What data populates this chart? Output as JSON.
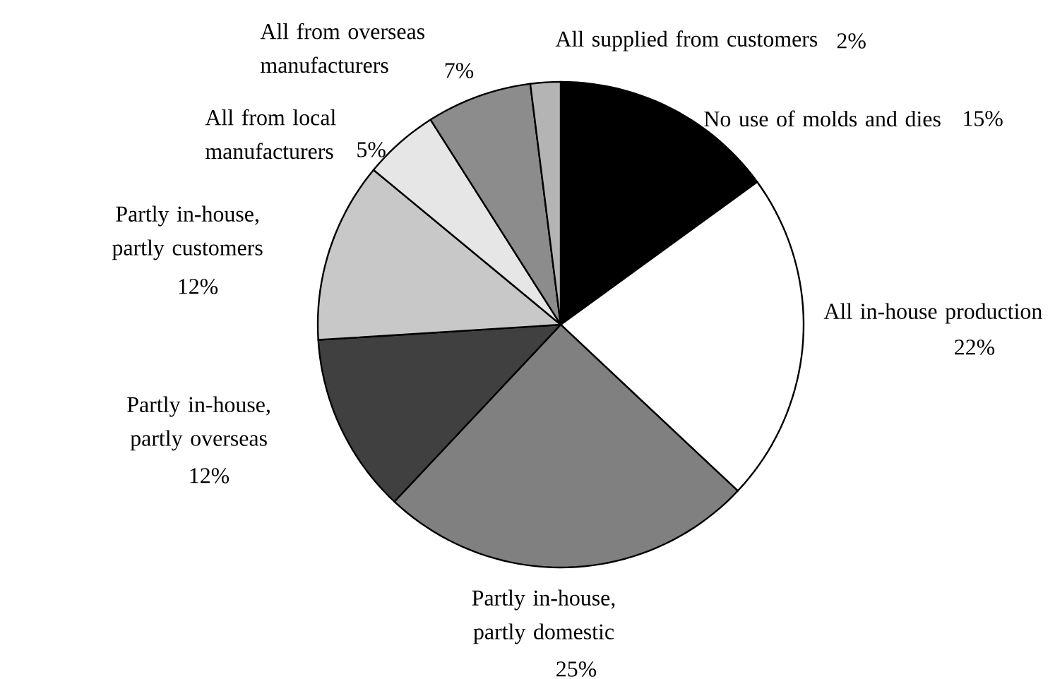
{
  "chart_data": {
    "type": "pie",
    "categories": [
      "No use of molds and dies",
      "All in-house production",
      "Partly in-house, partly domestic",
      "Partly in-house, partly overseas",
      "Partly in-house, partly customers",
      "All from local manufacturers",
      "All from overseas manufacturers",
      "All supplied from customers"
    ],
    "values": [
      15,
      22,
      25,
      12,
      12,
      5,
      7,
      2
    ],
    "value_labels": [
      "15%",
      "22%",
      "25%",
      "12%",
      "12%",
      "5%",
      "7%",
      "2%"
    ],
    "colors": [
      "#000000",
      "#ffffff",
      "#808080",
      "#404040",
      "#c8c8c8",
      "#e6e6e6",
      "#8c8c8c",
      "#b4b4b4"
    ]
  }
}
